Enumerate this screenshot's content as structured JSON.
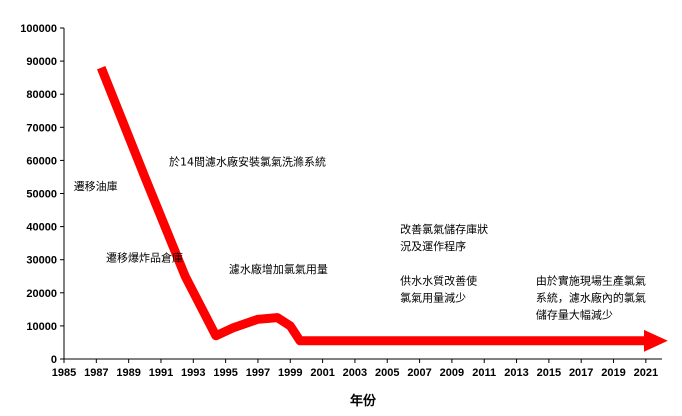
{
  "chart_data": {
    "type": "line",
    "xlabel": "年份",
    "ylabel": "",
    "xlim": [
      1985,
      2022
    ],
    "ylim": [
      0,
      100000
    ],
    "x_ticks": [
      "1985",
      "1987",
      "1989",
      "1991",
      "1993",
      "1995",
      "1997",
      "1999",
      "2001",
      "2003",
      "2005",
      "2007",
      "2009",
      "2011",
      "2013",
      "2015",
      "2017",
      "2019",
      "2021"
    ],
    "y_ticks": [
      "0",
      "10000",
      "20000",
      "30000",
      "40000",
      "50000",
      "60000",
      "70000",
      "80000",
      "90000",
      "100000"
    ],
    "grid": false,
    "legend": "none",
    "series": [
      {
        "color": "#ff0000",
        "x": [
          1987.3,
          1990.0,
          1992.5,
          1994.4,
          1995.5,
          1997.0,
          1998.2,
          1999.0,
          1999.6,
          2001.0,
          2010.0,
          2021.0
        ],
        "y": [
          88000,
          55000,
          25000,
          7000,
          9500,
          12000,
          12500,
          10000,
          5500,
          5500,
          5500,
          5500
        ]
      }
    ],
    "annotations": [
      {
        "id": "relocate-fuel",
        "lines": [
          "遷移油庫"
        ],
        "x": 1985.6,
        "y": 51000
      },
      {
        "id": "relocate-explosives",
        "lines": [
          "遷移爆炸品倉庫"
        ],
        "x": 1987.6,
        "y": 29500
      },
      {
        "id": "chlorine-wash",
        "lines": [
          "於14間濾水廠安裝氯氣洗滌系統"
        ],
        "x": 1991.5,
        "y": 58500
      },
      {
        "id": "increase-chlorine",
        "lines": [
          "濾水廠增加氯氣用量"
        ],
        "x": 1995.2,
        "y": 26000
      },
      {
        "id": "improve-storage",
        "lines": [
          "改善氯氣儲存庫狀",
          "況及運作程序"
        ],
        "x": 2005.8,
        "y": 38000
      },
      {
        "id": "water-quality",
        "lines": [
          "供水水質改善使",
          "氯氣用量減少"
        ],
        "x": 2005.8,
        "y": 22500
      },
      {
        "id": "onsite-generation",
        "lines": [
          "由於實施現場生產氯氣",
          "系統，濾水廠內的氯氣",
          "儲存量大幅減少"
        ],
        "x": 2014.2,
        "y": 22500
      }
    ]
  }
}
